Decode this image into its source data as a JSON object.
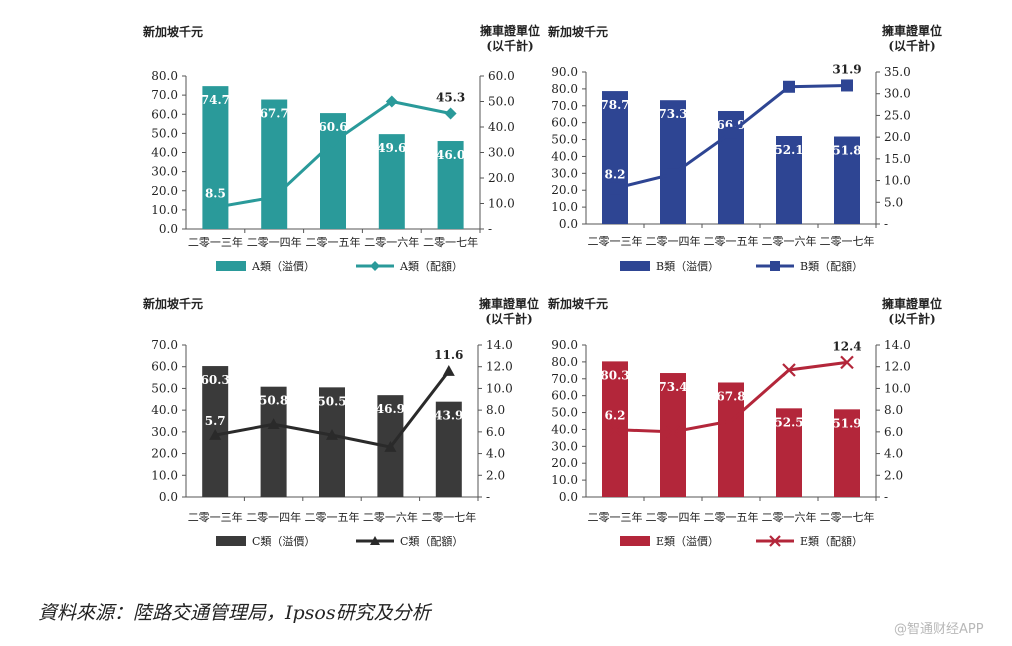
{
  "source_text": "資料來源：陸路交通管理局，Ipsos研究及分析",
  "watermark": "@智通财经APP",
  "chart_data": [
    {
      "type": "bar",
      "id": "A",
      "bar_color": "#2a9a9a",
      "line_color": "#2a9a9a",
      "marker": "diamond",
      "left_unit": "新加坡千元",
      "right_unit": "擁車證單位",
      "right_unit_sub": "(以千計)",
      "categories": [
        "二零一三年",
        "二零一四年",
        "二零一五年",
        "二零一六年",
        "二零一七年"
      ],
      "series": [
        {
          "name": "A類（溢價）",
          "kind": "bar",
          "axis": "left",
          "values": [
            74.7,
            67.7,
            60.6,
            49.6,
            46.0
          ],
          "labels": [
            "74.7",
            "67.7",
            "60.6",
            "49.6",
            "46.0"
          ]
        },
        {
          "name": "A類（配額）",
          "kind": "line",
          "axis": "right",
          "values": [
            8.5,
            12.5,
            34.0,
            50.0,
            45.3
          ],
          "labels": [
            "8.5",
            "",
            "",
            "",
            "45.3"
          ]
        }
      ],
      "left_ticks": [
        "0.0",
        "10.0",
        "20.0",
        "30.0",
        "40.0",
        "50.0",
        "60.0",
        "70.0",
        "80.0"
      ],
      "left_range": [
        0,
        80
      ],
      "right_ticks": [
        "-",
        "10.0",
        "20.0",
        "30.0",
        "40.0",
        "50.0",
        "60.0"
      ],
      "right_range": [
        0,
        60
      ]
    },
    {
      "type": "bar",
      "id": "B",
      "bar_color": "#2e4593",
      "line_color": "#2e4593",
      "marker": "square",
      "left_unit": "新加坡千元",
      "right_unit": "擁車證單位",
      "right_unit_sub": "(以千計)",
      "categories": [
        "二零一三年",
        "二零一四年",
        "二零一五年",
        "二零一六年",
        "二零一七年"
      ],
      "series": [
        {
          "name": "B類（溢價）",
          "kind": "bar",
          "axis": "left",
          "values": [
            78.7,
            73.3,
            66.9,
            52.1,
            51.8
          ],
          "labels": [
            "78.7",
            "73.3",
            "66.9",
            "52.1",
            "51.8"
          ]
        },
        {
          "name": "B類（配額）",
          "kind": "line",
          "axis": "right",
          "values": [
            8.2,
            11.5,
            21.0,
            31.6,
            31.9
          ],
          "labels": [
            "8.2",
            "",
            "",
            "",
            "31.9"
          ]
        }
      ],
      "left_ticks": [
        "0.0",
        "10.0",
        "20.0",
        "30.0",
        "40.0",
        "50.0",
        "60.0",
        "70.0",
        "80.0",
        "90.0"
      ],
      "left_range": [
        0,
        90
      ],
      "right_ticks": [
        "-",
        "5.0",
        "10.0",
        "15.0",
        "20.0",
        "25.0",
        "30.0",
        "35.0"
      ],
      "right_range": [
        0,
        35
      ]
    },
    {
      "type": "bar",
      "id": "C",
      "bar_color": "#3a3a3a",
      "line_color": "#2a2a2a",
      "marker": "triangle",
      "left_unit": "新加坡千元",
      "right_unit": "擁車證單位",
      "right_unit_sub": "(以千計)",
      "categories": [
        "二零一三年",
        "二零一四年",
        "二零一五年",
        "二零一六年",
        "二零一七年"
      ],
      "series": [
        {
          "name": "C類（溢價）",
          "kind": "bar",
          "axis": "left",
          "values": [
            60.3,
            50.8,
            50.5,
            46.9,
            43.9
          ],
          "labels": [
            "60.3",
            "50.8",
            "50.5",
            "46.9",
            "43.9"
          ]
        },
        {
          "name": "C類（配額）",
          "kind": "line",
          "axis": "right",
          "values": [
            5.7,
            6.7,
            5.7,
            4.6,
            11.6
          ],
          "labels": [
            "5.7",
            "",
            "",
            "",
            "11.6"
          ]
        }
      ],
      "left_ticks": [
        "0.0",
        "10.0",
        "20.0",
        "30.0",
        "40.0",
        "50.0",
        "60.0",
        "70.0"
      ],
      "left_range": [
        0,
        70
      ],
      "right_ticks": [
        "-",
        "2.0",
        "4.0",
        "6.0",
        "8.0",
        "10.0",
        "12.0",
        "14.0"
      ],
      "right_range": [
        0,
        14
      ]
    },
    {
      "type": "bar",
      "id": "E",
      "bar_color": "#b3263a",
      "line_color": "#b3263a",
      "marker": "x",
      "left_unit": "新加坡千元",
      "right_unit": "擁車證單位",
      "right_unit_sub": "(以千計)",
      "categories": [
        "二零一三年",
        "二零一四年",
        "二零一五年",
        "二零一六年",
        "二零一七年"
      ],
      "series": [
        {
          "name": "E類（溢價）",
          "kind": "bar",
          "axis": "left",
          "values": [
            80.3,
            73.4,
            67.8,
            52.5,
            51.9
          ],
          "labels": [
            "80.3",
            "73.4",
            "67.8",
            "52.5",
            "51.9"
          ]
        },
        {
          "name": "E類（配額）",
          "kind": "line",
          "axis": "right",
          "values": [
            6.2,
            6.0,
            7.0,
            11.7,
            12.4
          ],
          "labels": [
            "6.2",
            "",
            "",
            "",
            "12.4"
          ]
        }
      ],
      "left_ticks": [
        "0.0",
        "10.0",
        "20.0",
        "30.0",
        "40.0",
        "50.0",
        "60.0",
        "70.0",
        "80.0",
        "90.0"
      ],
      "left_range": [
        0,
        90
      ],
      "right_ticks": [
        "-",
        "2.0",
        "4.0",
        "6.0",
        "8.0",
        "10.0",
        "12.0",
        "14.0"
      ],
      "right_range": [
        0,
        14
      ]
    }
  ]
}
